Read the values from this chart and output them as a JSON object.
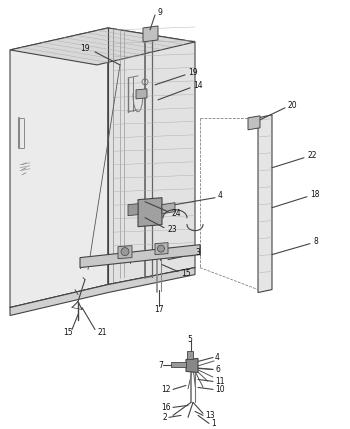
{
  "bg_color": "#ffffff",
  "line_color": "#444444",
  "light_gray": "#d8d8d8",
  "mid_gray": "#bbbbbb",
  "dark_gray": "#999999",
  "white_face": "#f0f0f0",
  "hatch_color": "#888888"
}
